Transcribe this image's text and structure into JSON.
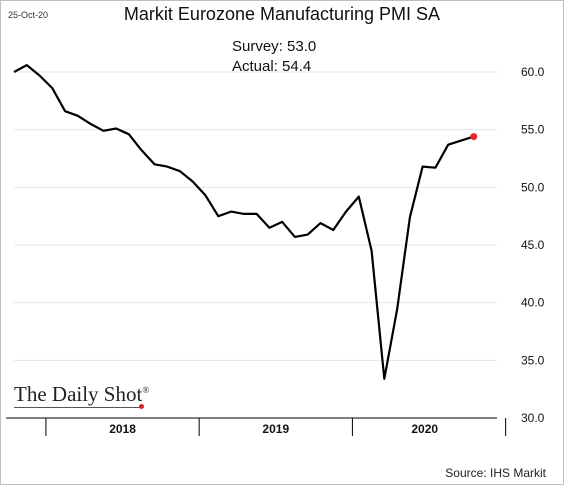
{
  "header": {
    "date": "25-Oct-20",
    "survey_text": "Survey: 53.0",
    "actual_text": "Actual:  54.4"
  },
  "branding": {
    "logo_text": "The Daily Shot",
    "logo_mark": "®",
    "source_text": "Source: IHS Markit"
  },
  "colors": {
    "line": "#000000",
    "highlight_point": "#e8262b",
    "grid": "#e6e6e6"
  },
  "chart_data": {
    "type": "line",
    "title": "Markit Eurozone Manufacturing PMI SA",
    "xlabel": "",
    "ylabel": "",
    "ylim": [
      30,
      60
    ],
    "yticks": [
      "60.0",
      "55.0",
      "50.0",
      "45.0",
      "40.0",
      "35.0",
      "30.0"
    ],
    "grid": true,
    "x_periods": [
      "2018",
      "2019",
      "2020"
    ],
    "x_dates": [
      "2017-10",
      "2017-11",
      "2017-12",
      "2018-01",
      "2018-02",
      "2018-03",
      "2018-04",
      "2018-05",
      "2018-06",
      "2018-07",
      "2018-08",
      "2018-09",
      "2018-10",
      "2018-11",
      "2018-12",
      "2019-01",
      "2019-02",
      "2019-03",
      "2019-04",
      "2019-05",
      "2019-06",
      "2019-07",
      "2019-08",
      "2019-09",
      "2019-10",
      "2019-11",
      "2019-12",
      "2020-01",
      "2020-02",
      "2020-03",
      "2020-04",
      "2020-05",
      "2020-06",
      "2020-07",
      "2020-08",
      "2020-09",
      "2020-10"
    ],
    "series": [
      {
        "values": [
          60.0,
          60.6,
          59.7,
          58.6,
          56.6,
          56.2,
          55.5,
          54.9,
          55.1,
          54.6,
          53.2,
          52.0,
          51.8,
          51.4,
          50.5,
          49.3,
          47.5,
          47.9,
          47.7,
          47.7,
          46.5,
          47.0,
          45.7,
          45.9,
          46.9,
          46.3,
          47.9,
          49.2,
          44.5,
          33.4,
          39.4,
          47.4,
          51.8,
          51.7,
          53.7,
          54.4
        ],
        "dates": [
          "2017-10",
          "2017-11",
          "2017-12",
          "2018-01",
          "2018-02",
          "2018-03",
          "2018-04",
          "2018-05",
          "2018-06",
          "2018-07",
          "2018-08",
          "2018-09",
          "2018-10",
          "2018-11",
          "2018-12",
          "2019-01",
          "2019-02",
          "2019-03",
          "2019-04",
          "2019-05",
          "2019-06",
          "2019-07",
          "2019-08",
          "2019-09",
          "2019-10",
          "2019-11",
          "2019-12",
          "2020-01",
          "2020-02",
          "2020-03",
          "2020-04",
          "2020-05",
          "2020-06",
          "2020-07",
          "2020-08",
          "2020-10"
        ],
        "highlight_last": true
      }
    ]
  }
}
